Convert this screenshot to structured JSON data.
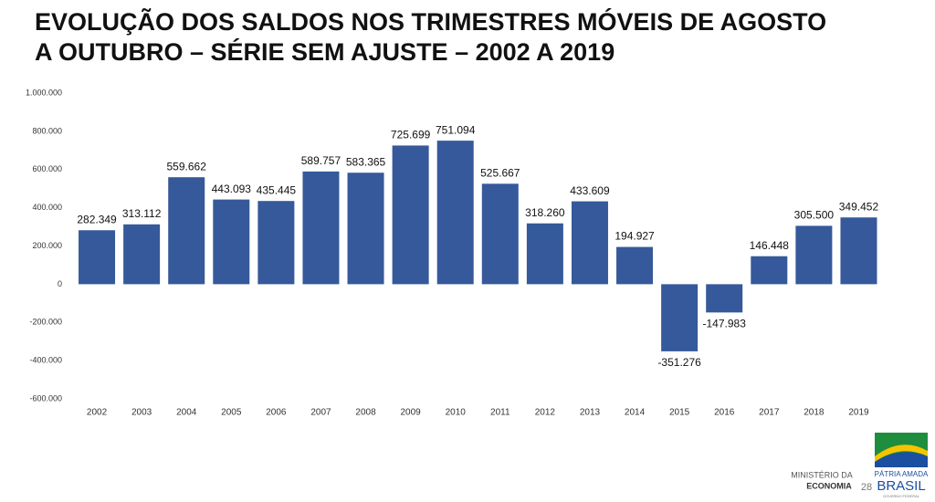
{
  "chart_data": {
    "type": "bar",
    "title": "EVOLUÇÃO DOS SALDOS NOS TRIMESTRES MÓVEIS DE AGOSTO A OUTUBRO – SÉRIE SEM AJUSTE – 2002 A 2019",
    "categories": [
      "2002",
      "2003",
      "2004",
      "2005",
      "2006",
      "2007",
      "2008",
      "2009",
      "2010",
      "2011",
      "2012",
      "2013",
      "2014",
      "2015",
      "2016",
      "2017",
      "2018",
      "2019"
    ],
    "values": [
      282349,
      313112,
      559662,
      443093,
      435445,
      589757,
      583365,
      725699,
      751094,
      525667,
      318260,
      433609,
      194927,
      -351276,
      -147983,
      146448,
      305500,
      349452
    ],
    "value_labels": [
      "282.349",
      "313.112",
      "559.662",
      "443.093",
      "435.445",
      "589.757",
      "583.365",
      "725.699",
      "751.094",
      "525.667",
      "318.260",
      "433.609",
      "194.927",
      "-351.276",
      "-147.983",
      "146.448",
      "305.500",
      "349.452"
    ],
    "color": "#35599a",
    "ylim": [
      -600000,
      1000000
    ],
    "yticks": [
      {
        "value": -600000,
        "label": "-600.000"
      },
      {
        "value": -400000,
        "label": "-400.000"
      },
      {
        "value": -200000,
        "label": "-200.000"
      },
      0,
      {
        "value": 200000,
        "label": "200.000"
      },
      {
        "value": 400000,
        "label": "400.000"
      },
      {
        "value": 600000,
        "label": "600.000"
      },
      {
        "value": 800000,
        "label": "800.000"
      },
      {
        "value": 1000000,
        "label": "1.000.000"
      }
    ],
    "grid": false
  },
  "footer": {
    "ministry_line1": "MINISTÉRIO DA",
    "ministry_line2": "ECONOMIA",
    "page_number": "28",
    "logo_line1": "PÁTRIA AMADA",
    "logo_line2": "BRASIL",
    "logo_line3": "GOVERNO FEDERAL"
  }
}
